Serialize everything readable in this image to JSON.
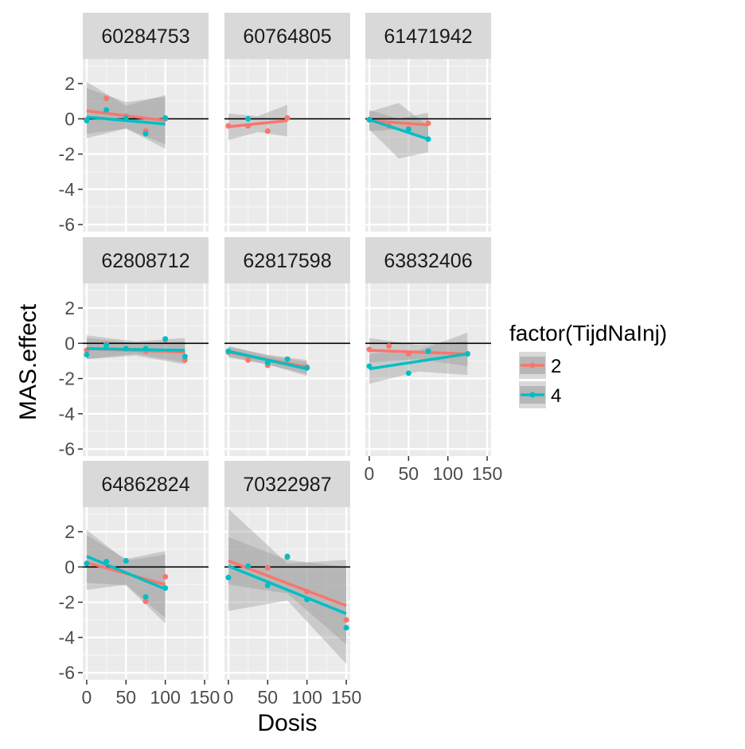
{
  "chart_data": {
    "type": "scatter",
    "facet_var": "",
    "xlabel": "Dosis",
    "ylabel": "MAS.effect",
    "xlim": [
      -5,
      155
    ],
    "ylim": [
      -6.4,
      3.4
    ],
    "x_ticks": [
      0,
      50,
      100,
      150
    ],
    "x_tick_labels": [
      "0",
      "50",
      "100",
      "150"
    ],
    "y_ticks": [
      2,
      0,
      -2,
      -4,
      -6
    ],
    "y_tick_labels": [
      "2",
      "0",
      "-2",
      "-4",
      "-6"
    ],
    "hline": 0,
    "grid": true,
    "legend": {
      "title": "factor(TijdNaInj)",
      "placement": "right",
      "entries": [
        {
          "label": "2",
          "color": "#F8766D"
        },
        {
          "label": "4",
          "color": "#00BFC4"
        }
      ]
    },
    "colors": {
      "2": "#F8766D",
      "4": "#00BFC4"
    },
    "panels": [
      {
        "title": "60284753",
        "series": [
          {
            "group": "2",
            "points": [
              [
                0,
                -0.05
              ],
              [
                25,
                1.15
              ],
              [
                50,
                0.15
              ],
              [
                75,
                -0.7
              ],
              [
                100,
                0.0
              ]
            ],
            "fit": [
              [
                0,
                0.45
              ],
              [
                100,
                -0.1
              ]
            ],
            "band_lo": [
              [
                0,
                -0.85
              ],
              [
                50,
                -0.55
              ],
              [
                100,
                -1.45
              ]
            ],
            "band_hi": [
              [
                0,
                1.75
              ],
              [
                50,
                0.95
              ],
              [
                100,
                1.25
              ]
            ]
          },
          {
            "group": "4",
            "points": [
              [
                0,
                -0.1
              ],
              [
                25,
                0.5
              ],
              [
                50,
                0.05
              ],
              [
                75,
                -0.85
              ],
              [
                100,
                0.05
              ]
            ],
            "fit": [
              [
                0,
                0.1
              ],
              [
                100,
                -0.3
              ]
            ],
            "band_lo": [
              [
                0,
                -1.1
              ],
              [
                50,
                -0.55
              ],
              [
                100,
                -1.7
              ]
            ],
            "band_hi": [
              [
                0,
                2.1
              ],
              [
                50,
                0.75
              ],
              [
                100,
                1.35
              ]
            ]
          }
        ]
      },
      {
        "title": "60764805",
        "series": [
          {
            "group": "2",
            "points": [
              [
                0,
                -0.4
              ],
              [
                25,
                -0.4
              ],
              [
                50,
                -0.7
              ],
              [
                75,
                0.05
              ]
            ],
            "fit": [
              [
                0,
                -0.45
              ],
              [
                75,
                -0.1
              ]
            ],
            "band_lo": [
              [
                0,
                -1.2
              ],
              [
                37.5,
                -0.75
              ],
              [
                75,
                -1.0
              ]
            ],
            "band_hi": [
              [
                0,
                0.3
              ],
              [
                37.5,
                0.15
              ],
              [
                75,
                0.8
              ]
            ]
          },
          {
            "group": "4",
            "points": [
              [
                25,
                0.0
              ]
            ],
            "fit": [],
            "band_lo": [],
            "band_hi": []
          }
        ]
      },
      {
        "title": "61471942",
        "series": [
          {
            "group": "2",
            "points": [
              [
                0,
                -0.05
              ],
              [
                25,
                -0.4
              ],
              [
                50,
                -0.55
              ],
              [
                75,
                -0.25
              ]
            ],
            "fit": [
              [
                0,
                -0.1
              ],
              [
                75,
                -0.35
              ]
            ],
            "band_lo": [
              [
                0,
                -0.7
              ],
              [
                37.5,
                -0.6
              ],
              [
                75,
                -1.05
              ]
            ],
            "band_hi": [
              [
                0,
                0.5
              ],
              [
                37.5,
                0.0
              ],
              [
                75,
                0.35
              ]
            ]
          },
          {
            "group": "4",
            "points": [
              [
                0,
                -0.05
              ],
              [
                50,
                -0.6
              ],
              [
                75,
                -1.15
              ]
            ],
            "fit": [
              [
                0,
                -0.05
              ],
              [
                75,
                -1.15
              ]
            ],
            "band_lo": [
              [
                0,
                -0.6
              ],
              [
                37.5,
                -2.25
              ],
              [
                75,
                -1.9
              ]
            ],
            "band_hi": [
              [
                0,
                0.4
              ],
              [
                37.5,
                0.9
              ],
              [
                75,
                -0.4
              ]
            ]
          }
        ]
      },
      {
        "title": "62808712",
        "series": [
          {
            "group": "2",
            "points": [
              [
                0,
                -0.4
              ],
              [
                25,
                -0.05
              ],
              [
                50,
                -0.3
              ],
              [
                75,
                -0.45
              ],
              [
                100,
                0.2
              ],
              [
                125,
                -0.95
              ]
            ],
            "fit": [
              [
                0,
                -0.3
              ],
              [
                125,
                -0.5
              ]
            ],
            "band_lo": [
              [
                0,
                -0.9
              ],
              [
                62.5,
                -0.6
              ],
              [
                125,
                -1.1
              ]
            ],
            "band_hi": [
              [
                0,
                0.3
              ],
              [
                62.5,
                0.0
              ],
              [
                125,
                0.1
              ]
            ]
          },
          {
            "group": "4",
            "points": [
              [
                0,
                -0.65
              ],
              [
                25,
                -0.1
              ],
              [
                50,
                -0.3
              ],
              [
                75,
                -0.3
              ],
              [
                100,
                0.25
              ],
              [
                125,
                -0.75
              ]
            ],
            "fit": [
              [
                0,
                -0.3
              ],
              [
                125,
                -0.4
              ]
            ],
            "band_lo": [
              [
                0,
                -0.9
              ],
              [
                62.5,
                -0.7
              ],
              [
                125,
                -1.2
              ]
            ],
            "band_hi": [
              [
                0,
                0.45
              ],
              [
                62.5,
                0.1
              ],
              [
                125,
                0.3
              ]
            ]
          }
        ]
      },
      {
        "title": "62817598",
        "series": [
          {
            "group": "2",
            "points": [
              [
                0,
                -0.5
              ],
              [
                25,
                -0.95
              ],
              [
                50,
                -1.25
              ],
              [
                75,
                -0.9
              ],
              [
                100,
                -1.35
              ]
            ],
            "fit": [
              [
                0,
                -0.5
              ],
              [
                100,
                -1.35
              ]
            ],
            "band_lo": [
              [
                0,
                -0.8
              ],
              [
                50,
                -1.2
              ],
              [
                100,
                -1.75
              ]
            ],
            "band_hi": [
              [
                0,
                -0.2
              ],
              [
                50,
                -0.65
              ],
              [
                100,
                -0.95
              ]
            ]
          },
          {
            "group": "4",
            "points": [
              [
                0,
                -0.45
              ],
              [
                50,
                -1.1
              ],
              [
                75,
                -0.9
              ],
              [
                100,
                -1.4
              ]
            ],
            "fit": [
              [
                0,
                -0.45
              ],
              [
                100,
                -1.45
              ]
            ],
            "band_lo": [
              [
                0,
                -0.75
              ],
              [
                50,
                -1.2
              ],
              [
                100,
                -1.85
              ]
            ],
            "band_hi": [
              [
                0,
                -0.15
              ],
              [
                50,
                -0.7
              ],
              [
                100,
                -1.05
              ]
            ]
          }
        ]
      },
      {
        "title": "63832406",
        "series": [
          {
            "group": "2",
            "points": [
              [
                0,
                -0.35
              ],
              [
                25,
                -0.15
              ],
              [
                50,
                -0.6
              ],
              [
                75,
                -0.45
              ],
              [
                125,
                -0.6
              ]
            ],
            "fit": [
              [
                0,
                -0.4
              ],
              [
                125,
                -0.6
              ]
            ],
            "band_lo": [
              [
                0,
                -1.1
              ],
              [
                62.5,
                -0.9
              ],
              [
                125,
                -1.3
              ]
            ],
            "band_hi": [
              [
                0,
                0.3
              ],
              [
                62.5,
                -0.1
              ],
              [
                125,
                0.1
              ]
            ]
          },
          {
            "group": "4",
            "points": [
              [
                0,
                -1.3
              ],
              [
                50,
                -1.7
              ],
              [
                75,
                -0.45
              ],
              [
                125,
                -0.6
              ]
            ],
            "fit": [
              [
                0,
                -1.45
              ],
              [
                125,
                -0.6
              ]
            ],
            "band_lo": [
              [
                0,
                -2.3
              ],
              [
                62.5,
                -1.6
              ],
              [
                125,
                -1.8
              ]
            ],
            "band_hi": [
              [
                0,
                -0.6
              ],
              [
                62.5,
                -0.4
              ],
              [
                125,
                0.6
              ]
            ]
          }
        ]
      },
      {
        "title": "64862824",
        "series": [
          {
            "group": "2",
            "points": [
              [
                0,
                0.2
              ],
              [
                25,
                0.3
              ],
              [
                50,
                0.35
              ],
              [
                75,
                -1.95
              ],
              [
                100,
                -0.55
              ]
            ],
            "fit": [
              [
                0,
                0.25
              ],
              [
                100,
                -1.0
              ]
            ],
            "band_lo": [
              [
                0,
                -1.3
              ],
              [
                50,
                -1.0
              ],
              [
                100,
                -2.9
              ]
            ],
            "band_hi": [
              [
                0,
                1.8
              ],
              [
                50,
                0.45
              ],
              [
                100,
                0.9
              ]
            ]
          },
          {
            "group": "4",
            "points": [
              [
                0,
                0.2
              ],
              [
                25,
                0.3
              ],
              [
                50,
                0.35
              ],
              [
                75,
                -1.7
              ],
              [
                100,
                -1.2
              ]
            ],
            "fit": [
              [
                0,
                0.6
              ],
              [
                100,
                -1.25
              ]
            ],
            "band_lo": [
              [
                0,
                -0.9
              ],
              [
                50,
                -1.05
              ],
              [
                100,
                -3.2
              ]
            ],
            "band_hi": [
              [
                0,
                2.1
              ],
              [
                50,
                0.35
              ],
              [
                100,
                0.7
              ]
            ]
          }
        ]
      },
      {
        "title": "70322987",
        "series": [
          {
            "group": "2",
            "points": [
              [
                0,
                -0.6
              ],
              [
                25,
                0.0
              ],
              [
                50,
                -0.05
              ],
              [
                75,
                0.55
              ],
              [
                100,
                -1.4
              ],
              [
                150,
                -3.0
              ]
            ],
            "fit": [
              [
                0,
                0.35
              ],
              [
                150,
                -2.2
              ]
            ],
            "band_lo": [
              [
                0,
                -1.0
              ],
              [
                75,
                -1.5
              ],
              [
                150,
                -4.4
              ]
            ],
            "band_hi": [
              [
                0,
                1.7
              ],
              [
                75,
                0.4
              ],
              [
                150,
                0.0
              ]
            ]
          },
          {
            "group": "4",
            "points": [
              [
                0,
                -0.6
              ],
              [
                25,
                0.05
              ],
              [
                50,
                -1.05
              ],
              [
                75,
                0.6
              ],
              [
                100,
                -1.85
              ],
              [
                150,
                -3.45
              ]
            ],
            "fit": [
              [
                0,
                0.05
              ],
              [
                150,
                -2.65
              ]
            ],
            "band_lo": [
              [
                0,
                -2.5
              ],
              [
                75,
                -1.9
              ],
              [
                150,
                -5.5
              ]
            ],
            "band_hi": [
              [
                0,
                3.3
              ],
              [
                75,
                0.2
              ],
              [
                150,
                0.4
              ]
            ]
          }
        ]
      }
    ]
  }
}
